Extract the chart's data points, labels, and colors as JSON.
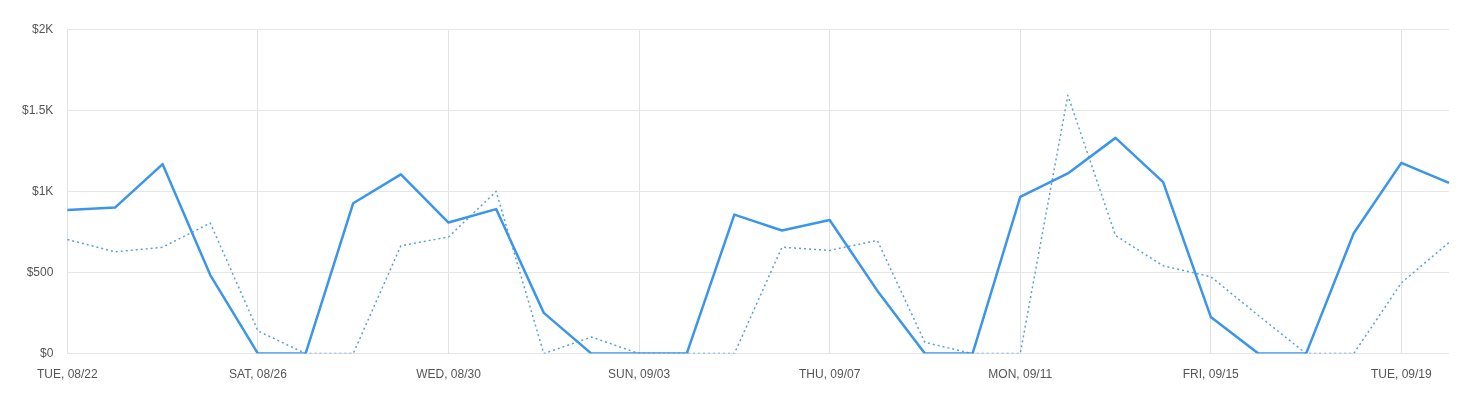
{
  "chart_data": {
    "type": "line",
    "categories": [
      "TUE, 08/22",
      null,
      null,
      null,
      "SAT, 08/26",
      null,
      null,
      null,
      "WED, 08/30",
      null,
      null,
      null,
      "SUN, 09/03",
      null,
      null,
      null,
      "THU, 09/07",
      null,
      null,
      null,
      "MON, 09/11",
      null,
      null,
      null,
      "FRI, 09/15",
      null,
      null,
      null,
      "TUE, 09/19",
      null
    ],
    "series": [
      {
        "color": "#3b95e8",
        "line_style": "solid",
        "values": [
          885,
          900,
          1168,
          484,
          0,
          0,
          927,
          1105,
          808,
          891,
          251,
          0,
          0,
          0,
          857,
          759,
          824,
          388,
          0,
          0,
          966,
          1111,
          1330,
          1057,
          226,
          0,
          0,
          742,
          1176,
          1053
        ]
      },
      {
        "color": "#5a9fe0",
        "line_style": "dotted",
        "values": [
          703,
          627,
          656,
          805,
          140,
          0,
          0,
          665,
          719,
          1000,
          0,
          102,
          0,
          0,
          0,
          656,
          636,
          698,
          69,
          0,
          0,
          1592,
          728,
          541,
          474,
          235,
          0,
          0,
          436,
          685
        ]
      }
    ],
    "ylim": [
      0,
      2000
    ],
    "yticks": [
      {
        "value": 0,
        "label": "$0"
      },
      {
        "value": 500,
        "label": "$500"
      },
      {
        "value": 1000,
        "label": "$1K"
      },
      {
        "value": 1500,
        "label": "$1.5K"
      },
      {
        "value": 2000,
        "label": "$2K"
      }
    ],
    "grid": true,
    "legend": false,
    "marker": "none"
  }
}
